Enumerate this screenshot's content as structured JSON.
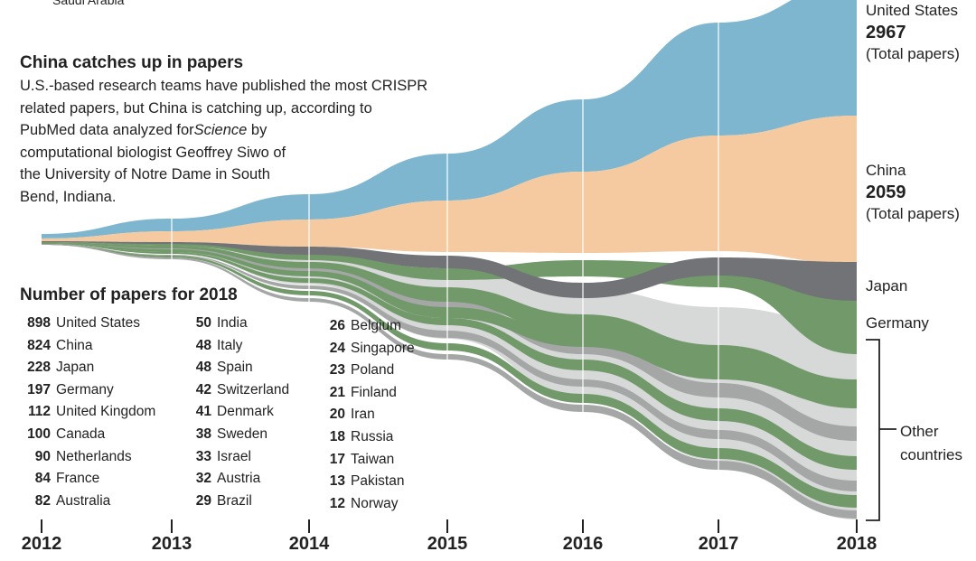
{
  "cropped_label": "Saudi Arabia",
  "chart_data": {
    "type": "area",
    "title": "China catches up in papers",
    "description": [
      "U.S.-based research teams have published the most CRISPR",
      "related papers, but China is catching up, according to",
      "PubMed data analyzed for",
      "Science",
      " by",
      "computational biologist Geoffrey Siwo of",
      "the University of Notre Dame in South",
      "Bend, Indiana."
    ],
    "x_ticks": [
      "2012",
      "2013",
      "2014",
      "2015",
      "2016",
      "2017",
      "2018"
    ],
    "grid": true,
    "series_labels": [
      {
        "name": "United States",
        "total": "2967",
        "note": "(Total papers)"
      },
      {
        "name": "China",
        "total": "2059",
        "note": "(Total papers)"
      },
      {
        "name": "Japan"
      },
      {
        "name": "Germany"
      }
    ],
    "other_label": [
      "Other",
      "countries"
    ],
    "table_title": "Number of papers for 2018",
    "papers_2018": [
      {
        "value": "898",
        "country": "United States"
      },
      {
        "value": "824",
        "country": "China"
      },
      {
        "value": "228",
        "country": "Japan"
      },
      {
        "value": "197",
        "country": "Germany"
      },
      {
        "value": "112",
        "country": "United Kingdom"
      },
      {
        "value": "100",
        "country": "Canada"
      },
      {
        "value": "90",
        "country": "Netherlands"
      },
      {
        "value": "84",
        "country": "France"
      },
      {
        "value": "82",
        "country": "Australia"
      },
      {
        "value": "50",
        "country": "India"
      },
      {
        "value": "48",
        "country": "Italy"
      },
      {
        "value": "48",
        "country": "Spain"
      },
      {
        "value": "42",
        "country": "Switzerland"
      },
      {
        "value": "41",
        "country": "Denmark"
      },
      {
        "value": "38",
        "country": "Sweden"
      },
      {
        "value": "33",
        "country": "Israel"
      },
      {
        "value": "32",
        "country": "Austria"
      },
      {
        "value": "29",
        "country": "Brazil"
      },
      {
        "value": "26",
        "country": "Belgium"
      },
      {
        "value": "24",
        "country": "Singapore"
      },
      {
        "value": "23",
        "country": "Poland"
      },
      {
        "value": "21",
        "country": "Finland"
      },
      {
        "value": "20",
        "country": "Iran"
      },
      {
        "value": "18",
        "country": "Russia"
      },
      {
        "value": "17",
        "country": "Taiwan"
      },
      {
        "value": "13",
        "country": "Pakistan"
      },
      {
        "value": "12",
        "country": "Norway"
      }
    ],
    "colors": {
      "united_states": "#7eb6d0",
      "china": "#f5caa0",
      "japan": "#727377",
      "germany": "#71996a",
      "other": "#a4a7a6",
      "other_light": "#d7d8d8",
      "axis": "#222222"
    }
  }
}
